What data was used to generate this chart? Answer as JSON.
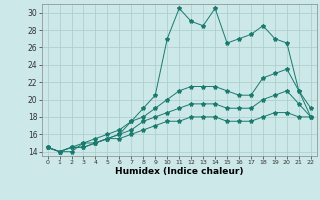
{
  "title": "",
  "xlabel": "Humidex (Indice chaleur)",
  "ylabel": "",
  "xlim": [
    -0.5,
    22.5
  ],
  "ylim": [
    13.5,
    31
  ],
  "yticks": [
    14,
    16,
    18,
    20,
    22,
    24,
    26,
    28,
    30
  ],
  "xticks": [
    0,
    1,
    2,
    3,
    4,
    5,
    6,
    7,
    8,
    9,
    10,
    11,
    12,
    13,
    14,
    15,
    16,
    17,
    18,
    19,
    20,
    21,
    22
  ],
  "background_color": "#cce8e8",
  "grid_color": "#aacccc",
  "line_color": "#1a7a6e",
  "lines": [
    [
      14.5,
      14.0,
      14.0,
      15.0,
      15.0,
      15.5,
      16.0,
      17.5,
      19.0,
      20.5,
      27.0,
      30.5,
      29.0,
      28.5,
      30.5,
      26.5,
      27.0,
      27.5,
      28.5,
      27.0,
      26.5,
      21.0,
      19.0
    ],
    [
      14.5,
      14.0,
      14.5,
      15.0,
      15.5,
      16.0,
      16.5,
      17.5,
      18.0,
      19.0,
      20.0,
      21.0,
      21.5,
      21.5,
      21.5,
      21.0,
      20.5,
      20.5,
      22.5,
      23.0,
      23.5,
      21.0,
      18.0
    ],
    [
      14.5,
      14.0,
      14.5,
      14.5,
      15.0,
      15.5,
      16.0,
      16.5,
      17.5,
      18.0,
      18.5,
      19.0,
      19.5,
      19.5,
      19.5,
      19.0,
      19.0,
      19.0,
      20.0,
      20.5,
      21.0,
      19.5,
      18.0
    ],
    [
      14.5,
      14.0,
      14.5,
      14.5,
      15.0,
      15.5,
      15.5,
      16.0,
      16.5,
      17.0,
      17.5,
      17.5,
      18.0,
      18.0,
      18.0,
      17.5,
      17.5,
      17.5,
      18.0,
      18.5,
      18.5,
      18.0,
      18.0
    ]
  ]
}
